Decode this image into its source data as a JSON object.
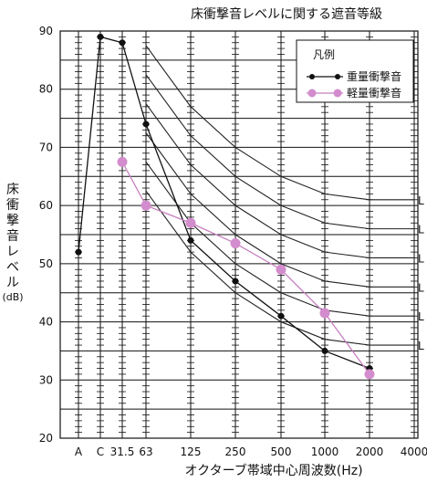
{
  "chart_data": {
    "type": "line",
    "title": "床衝撃音レベルに関する遮音等級",
    "xlabel": "オクターブ帯域中心周波数(Hz)",
    "ylabel": "床衝撃音レベル",
    "ylabel_unit": "(dB)",
    "x_categories": [
      "A",
      "C",
      "31.5",
      "63",
      "125",
      "250",
      "500",
      "1000",
      "2000",
      "4000"
    ],
    "y_ticks": [
      20,
      30,
      40,
      50,
      60,
      70,
      80,
      90
    ],
    "ylim": [
      20,
      90
    ],
    "grid": true,
    "legend": {
      "title": "凡例",
      "position": "top-right",
      "entries": [
        "重量衝撃音",
        "軽量衝撃音"
      ]
    },
    "series": [
      {
        "name": "重量衝撃音",
        "color": "#111111",
        "points": [
          {
            "x": "A",
            "y": 52
          },
          {
            "x": "C",
            "y": 89
          },
          {
            "x": "31.5",
            "y": 88
          },
          {
            "x": "63",
            "y": 74
          },
          {
            "x": "125",
            "y": 54
          },
          {
            "x": "250",
            "y": 47
          },
          {
            "x": "500",
            "y": 41
          },
          {
            "x": "1000",
            "y": 35
          },
          {
            "x": "2000",
            "y": 32
          }
        ]
      },
      {
        "name": "軽量衝撃音",
        "color": "#c77fc0",
        "points": [
          {
            "x": "31.5",
            "y": 67.5
          },
          {
            "x": "63",
            "y": 60
          },
          {
            "x": "125",
            "y": 57
          },
          {
            "x": "250",
            "y": 53.5
          },
          {
            "x": "500",
            "y": 49
          },
          {
            "x": "1000",
            "y": 41.5
          },
          {
            "x": "2000",
            "y": 31
          }
        ]
      }
    ],
    "rating_curves": [
      {
        "label": "L",
        "values": [
          87.5,
          77,
          70,
          65,
          62,
          61
        ]
      },
      {
        "label": "L",
        "values": [
          82.5,
          72,
          65,
          60,
          57,
          56
        ]
      },
      {
        "label": "L",
        "values": [
          77.5,
          67,
          60,
          55,
          52,
          51
        ]
      },
      {
        "label": "L",
        "values": [
          72.5,
          62,
          55,
          50,
          47,
          46
        ]
      },
      {
        "label": "L",
        "values": [
          67.5,
          57,
          50,
          45,
          42,
          41
        ]
      },
      {
        "label": "L",
        "values": [
          62.5,
          52,
          45,
          40,
          37,
          36
        ]
      }
    ],
    "rating_curve_x": [
      "63",
      "125",
      "250",
      "500",
      "1000",
      "2000"
    ],
    "rating_curve_end": "4000"
  }
}
